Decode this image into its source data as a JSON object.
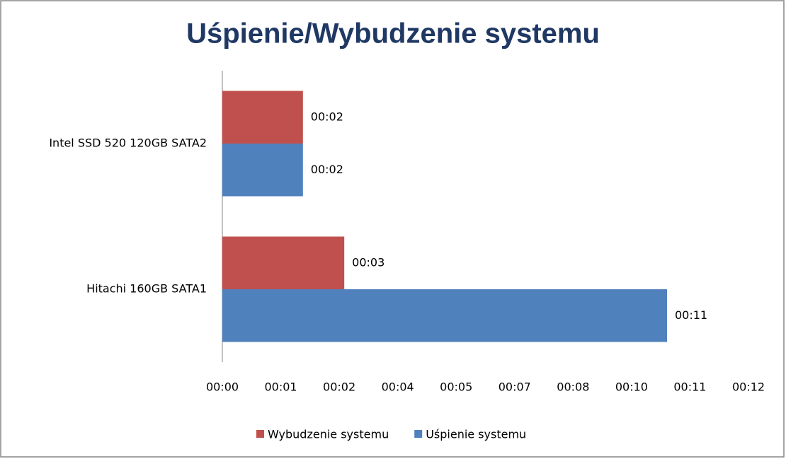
{
  "chart_data": {
    "type": "hbar",
    "title": "Uśpienie/Wybudzenie systemu",
    "categories": [
      "Intel SSD 520 120GB SATA2",
      "Hitachi 160GB SATA1"
    ],
    "series": [
      {
        "name": "Wybudzenie systemu",
        "color": "#c0504d",
        "values": [
          1.93,
          2.92
        ],
        "value_labels": [
          "00:02",
          "00:03"
        ]
      },
      {
        "name": "Uśpienie systemu",
        "color": "#4f81bd",
        "values": [
          1.93,
          10.65
        ],
        "value_labels": [
          "00:02",
          "00:11"
        ]
      }
    ],
    "xlim": [
      0,
      12.6
    ],
    "xticks": [
      {
        "value": 0,
        "label": "00:00"
      },
      {
        "value": 1.4,
        "label": "00:01"
      },
      {
        "value": 2.8,
        "label": "00:02"
      },
      {
        "value": 4.2,
        "label": "00:04"
      },
      {
        "value": 5.6,
        "label": "00:05"
      },
      {
        "value": 7,
        "label": "00:07"
      },
      {
        "value": 8.4,
        "label": "00:08"
      },
      {
        "value": 9.8,
        "label": "00:10"
      },
      {
        "value": 11.2,
        "label": "00:11"
      },
      {
        "value": 12.6,
        "label": "00:12"
      }
    ],
    "legend": "bottom"
  }
}
